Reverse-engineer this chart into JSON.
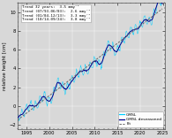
{
  "title": "",
  "ylabel": "relative height [cm]",
  "xlabel": "",
  "xlim": [
    1993.0,
    2025.5
  ],
  "ylim": [
    -2.5,
    11.0
  ],
  "yticks": [
    -2,
    0,
    2,
    4,
    6,
    8,
    10
  ],
  "xticks": [
    1995,
    2000,
    2005,
    2010,
    2015,
    2020,
    2025
  ],
  "gmsl_color": "#00cfff",
  "deseasoned_color": "#00008b",
  "fit_color": "#666666",
  "background_color": "#d8d8d8",
  "annotation_lines": [
    "Trend 32 years:  3.5 mmy⁻¹",
    "Trend (07/93-06/03):  2.6 mmy⁻¹",
    "Trend (01/04-12/13):  3.3 mmy⁻¹",
    "Trend (10/14-09/24):  3.8 mmy⁻¹"
  ],
  "legend_labels": [
    "GMSL",
    "GMSL deseasoned",
    "Fit"
  ],
  "t_start": 1993.0,
  "t_end": 2025.0,
  "seed": 42
}
